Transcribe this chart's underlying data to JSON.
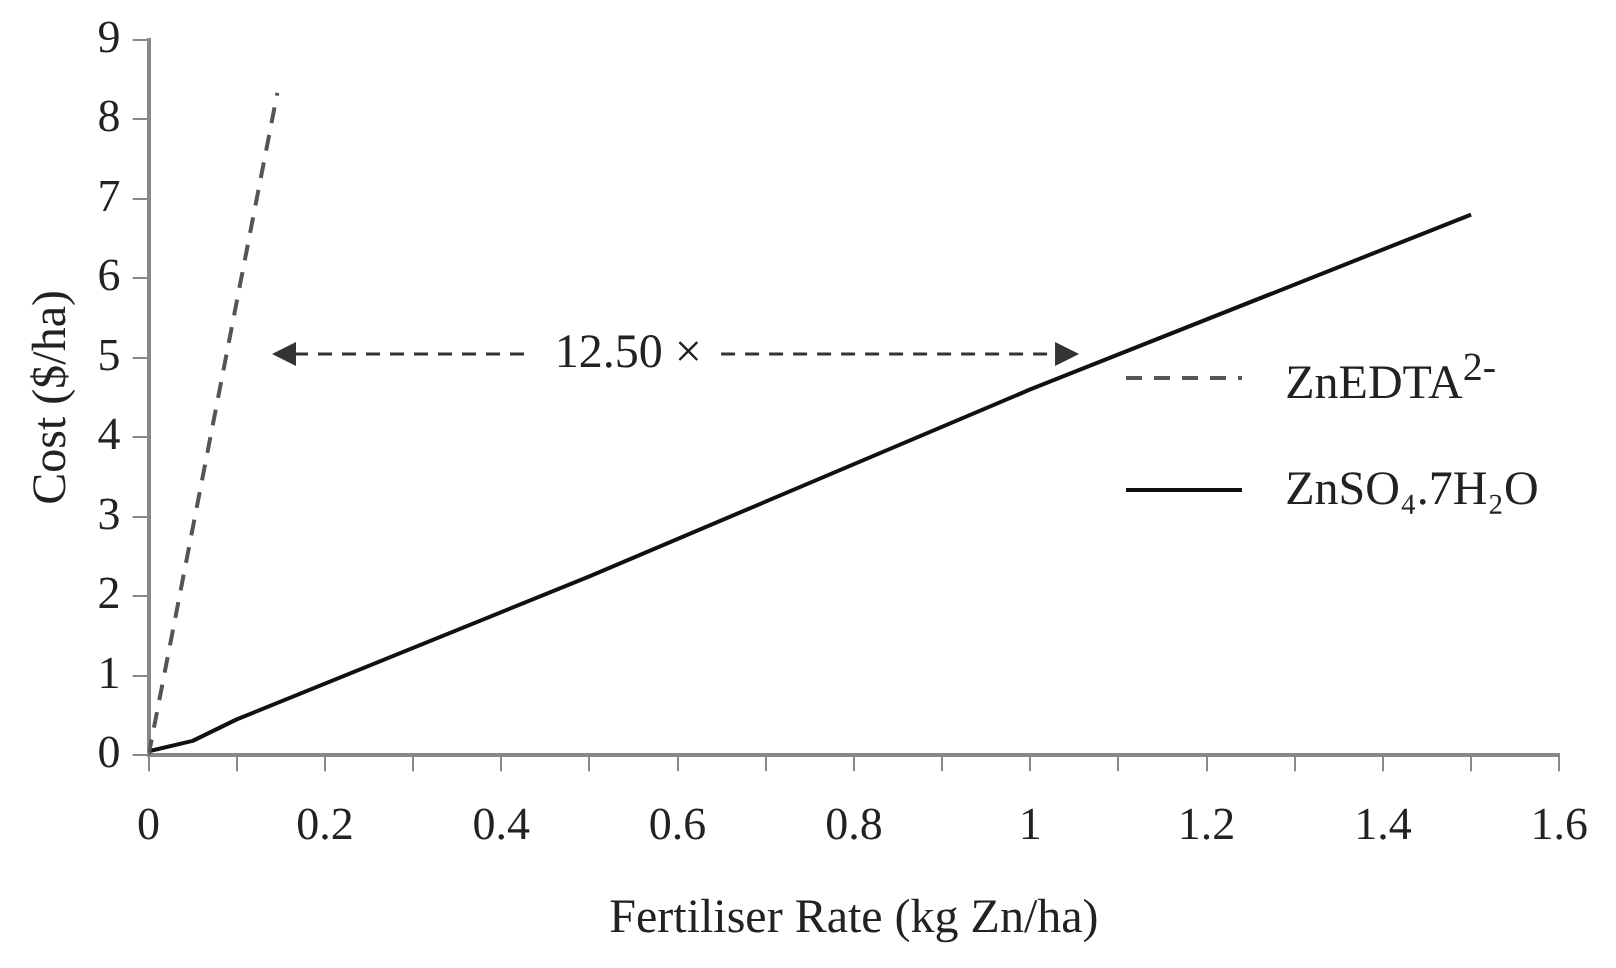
{
  "chart_data": {
    "type": "line",
    "xlabel": "Fertiliser Rate (kg Zn/ha)",
    "ylabel": "Cost ($/ha)",
    "xlim": [
      0,
      1.6
    ],
    "xticks": [
      0,
      {
        "value": 0.1,
        "label": null
      },
      0.2,
      {
        "value": 0.3,
        "label": null
      },
      0.4,
      {
        "value": 0.5,
        "label": null
      },
      0.6,
      {
        "value": 0.7,
        "label": null
      },
      0.8,
      {
        "value": 0.9,
        "label": null
      },
      1,
      {
        "value": 1.1,
        "label": null
      },
      1.2,
      {
        "value": 1.3,
        "label": null
      },
      1.4,
      {
        "value": 1.5,
        "label": null
      },
      1.6
    ],
    "ylim": [
      0,
      9
    ],
    "yticks": [
      0,
      1,
      2,
      3,
      4,
      5,
      6,
      7,
      8,
      9
    ],
    "legend": "right",
    "marker": "none",
    "annotations": [
      "12.50 ×"
    ],
    "series": [
      {
        "name": "ZnEDTA$^{2-}$",
        "color": "#555555",
        "line_style": "dashed",
        "x": [
          0,
          0.146
        ],
        "values": [
          0,
          8.33
        ]
      },
      {
        "name": "ZnSO₄.7H₂O",
        "color": "#111111",
        "line_style": "solid",
        "x": [
          0,
          0.05,
          0.1,
          0.5,
          1,
          1.5
        ],
        "values": [
          0.05,
          0.18,
          0.45,
          2.25,
          4.6,
          6.8
        ]
      }
    ]
  }
}
